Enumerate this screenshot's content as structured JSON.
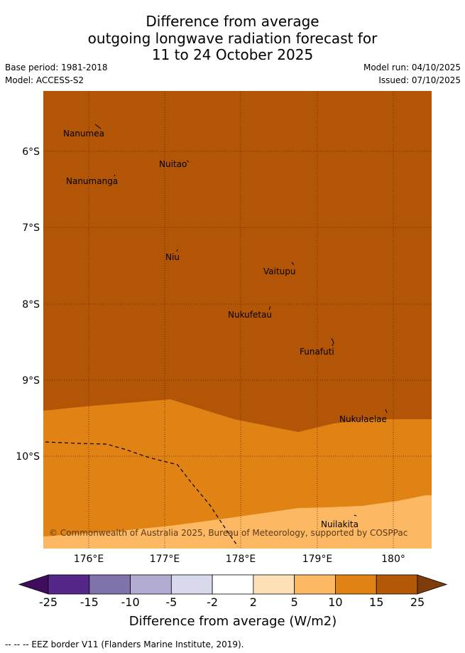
{
  "title": {
    "line1": "Difference from average",
    "line2": "outgoing longwave radiation forecast for",
    "line3": "11 to 24 October 2025"
  },
  "meta": {
    "base_period": "Base period: 1981-2018",
    "model": "Model: ACCESS-S2",
    "model_run": "Model run: 04/10/2025",
    "issued": "Issued: 07/10/2025"
  },
  "map": {
    "lon_ticks": [
      "176°E",
      "177°E",
      "178°E",
      "179°E",
      "180°"
    ],
    "lat_ticks": [
      "6°S",
      "7°S",
      "8°S",
      "9°S",
      "10°S"
    ],
    "places": [
      "Nanumea",
      "Nuitao",
      "Nanumanga",
      "Niu",
      "Vaitupu",
      "Nukufetau",
      "Funafuti",
      "Nukulaelae",
      "Nuilakita"
    ],
    "copyright": "© Commonwealth of Australia 2025, Bureau of Meteorology, supported by COSPPac",
    "colors": {
      "c15_25": "#b25506",
      "c10_15": "#e08214",
      "c5_10": "#fdb863",
      "c2_5": "#fee0b6"
    }
  },
  "colorbar": {
    "ticks": [
      "-25",
      "-15",
      "-10",
      "-5",
      "-2",
      "2",
      "5",
      "10",
      "15",
      "25"
    ],
    "colors": [
      "#3f0c5e",
      "#542788",
      "#8073ac",
      "#b2abd2",
      "#d8daeb",
      "#ffffff",
      "#fee0b6",
      "#fdb863",
      "#e08214",
      "#b35806",
      "#7f3b08"
    ],
    "label": "Difference from average (W/m2)"
  },
  "footer": {
    "legend_text": "--  --  -- EEZ border V11 (Flanders Marine Institute, 2019)."
  }
}
